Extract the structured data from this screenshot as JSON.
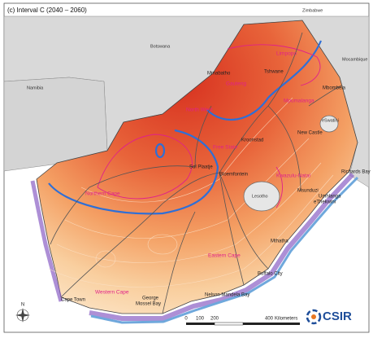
{
  "title": "(c) Interval C (2040 – 2060)",
  "countries": [
    "Zimbabwe",
    "Botswana",
    "Namibia",
    "Mocambique",
    "eSwatini",
    "Lesotho"
  ],
  "provinces": [
    "Limpopo",
    "Gauteng",
    "North West",
    "Mpumalanga",
    "Free State",
    "Northern Cape",
    "Kwazulu-Natal",
    "Eastern Cape",
    "Western Cape"
  ],
  "cities": [
    "Mmabatho",
    "Tshwane",
    "Mbombela",
    "New Castle",
    "Kroonstad",
    "Sol Plaatje",
    "Bloemfontein",
    "Richards Bay",
    "Msunduzi",
    "Umhlanga",
    "eThekwini",
    "Mthatha",
    "Buffalo City",
    "Nelson Mandela Bay",
    "George",
    "Mossel Bay",
    "Cape Town"
  ],
  "scale": {
    "ticks": [
      0,
      100,
      200,
      400
    ],
    "unit": "Kilometers"
  },
  "compass": "N",
  "logo": "CSIR"
}
